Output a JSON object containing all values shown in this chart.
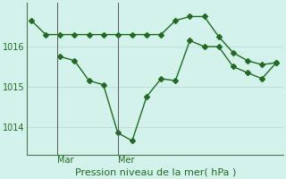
{
  "line1_x": [
    0,
    1,
    2,
    3,
    4,
    5,
    6,
    7,
    8,
    9,
    10,
    11,
    12,
    13,
    14,
    15,
    16,
    17
  ],
  "line1_y": [
    1016.65,
    1016.3,
    1016.3,
    1016.3,
    1016.3,
    1016.3,
    1016.3,
    1016.3,
    1016.3,
    1016.3,
    1016.65,
    1016.75,
    1016.75,
    1016.25,
    1015.85,
    1015.65,
    1015.55,
    1015.6
  ],
  "line2_x": [
    2,
    3,
    4,
    5,
    6,
    7,
    8,
    9,
    10,
    11,
    12,
    13,
    14,
    15,
    16,
    17
  ],
  "line2_y": [
    1015.75,
    1015.65,
    1015.15,
    1015.05,
    1013.85,
    1013.65,
    1014.75,
    1015.2,
    1015.15,
    1016.15,
    1016.0,
    1016.0,
    1015.5,
    1015.35,
    1015.2,
    1015.6
  ],
  "line_color": "#1f6b1f",
  "bg_color": "#d4f2ec",
  "grid_color": "#b8ddd6",
  "xlabel": "Pression niveau de la mer( hPa )",
  "yticks": [
    1014,
    1015,
    1016
  ],
  "ylim": [
    1013.3,
    1017.1
  ],
  "xlim": [
    -0.3,
    17.5
  ],
  "vline1_x": 1.8,
  "vline2_x": 6.0,
  "vline_labels": [
    "Mar",
    "Mer"
  ],
  "marker": "D",
  "marker_size": 3,
  "linewidth": 1.0,
  "xlabel_fontsize": 8,
  "tick_fontsize": 7
}
